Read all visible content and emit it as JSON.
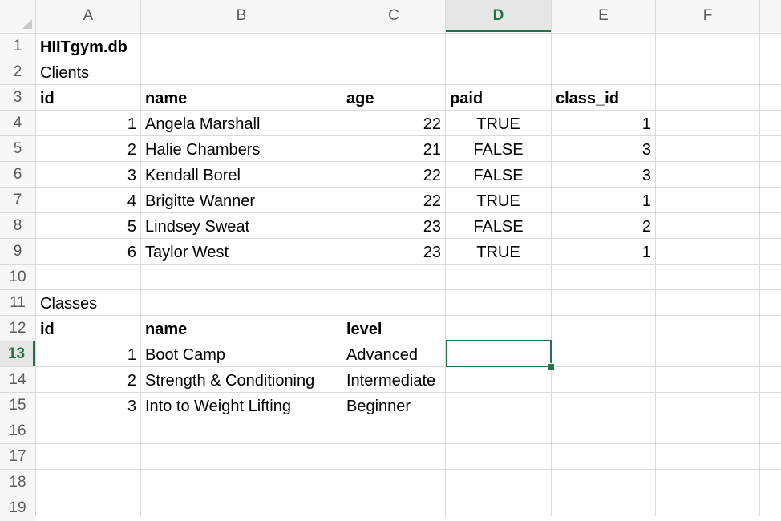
{
  "spreadsheet": {
    "columns": [
      "A",
      "B",
      "C",
      "D",
      "E",
      "F"
    ],
    "rows": [
      "1",
      "2",
      "3",
      "4",
      "5",
      "6",
      "7",
      "8",
      "9",
      "10",
      "11",
      "12",
      "13",
      "14",
      "15",
      "16",
      "17",
      "18",
      "19"
    ],
    "active_column": "D",
    "active_row": "13",
    "selected_cell": "D13"
  },
  "cells": {
    "title": "HIITgym.db",
    "clients_label": "Clients",
    "clients_headers": {
      "id": "id",
      "name": "name",
      "age": "age",
      "paid": "paid",
      "class_id": "class_id"
    },
    "clients": [
      {
        "id": "1",
        "name": "Angela Marshall",
        "age": "22",
        "paid": "TRUE",
        "class_id": "1"
      },
      {
        "id": "2",
        "name": "Halie Chambers",
        "age": "21",
        "paid": "FALSE",
        "class_id": "3"
      },
      {
        "id": "3",
        "name": "Kendall Borel",
        "age": "22",
        "paid": "FALSE",
        "class_id": "3"
      },
      {
        "id": "4",
        "name": "Brigitte Wanner",
        "age": "22",
        "paid": "TRUE",
        "class_id": "1"
      },
      {
        "id": "5",
        "name": "Lindsey Sweat",
        "age": "23",
        "paid": "FALSE",
        "class_id": "2"
      },
      {
        "id": "6",
        "name": "Taylor West",
        "age": "23",
        "paid": "TRUE",
        "class_id": "1"
      }
    ],
    "classes_label": "Classes",
    "classes_headers": {
      "id": "id",
      "name": "name",
      "level": "level"
    },
    "classes": [
      {
        "id": "1",
        "name": "Boot Camp",
        "level": "Advanced"
      },
      {
        "id": "2",
        "name": "Strength & Conditioning",
        "level": "Intermediate"
      },
      {
        "id": "3",
        "name": "Into to Weight Lifting",
        "level": "Beginner"
      }
    ]
  },
  "colors": {
    "accent": "#217346",
    "gridline": "#dadada",
    "header_bg": "#f7f7f7"
  }
}
